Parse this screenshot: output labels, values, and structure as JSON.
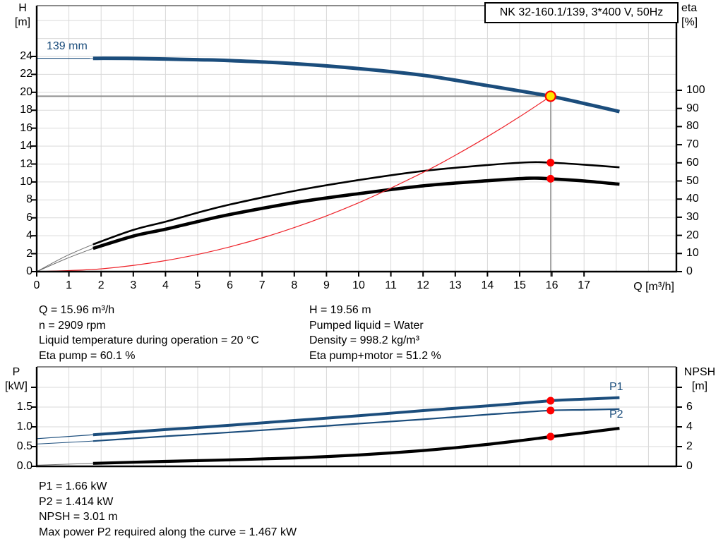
{
  "title_box": "NK 32-160.1/139, 3*400 V, 50Hz",
  "colors": {
    "curve_blue": "#1b4d7c",
    "curve_black": "#000000",
    "curve_red": "#ee2229",
    "marker_red": "#ff0000",
    "marker_yellow": "#ffe600",
    "grid": "#d9d9d9",
    "axis": "#000000",
    "guide": "#8f8f8f",
    "thin_grey": "#6e6e6e",
    "label_blue": "#1b4d7c"
  },
  "annotations": {
    "mid_left": [
      "Q = 15.96 m³/h",
      "n = 2909 rpm",
      "Liquid temperature during operation = 20 °C",
      "Eta pump = 60.1 %"
    ],
    "mid_right": [
      "H = 19.56 m",
      "Pumped liquid = Water",
      "Density = 998.2 kg/m³",
      "Eta pump+motor = 51.2 %"
    ],
    "bottom": [
      "P1 = 1.66 kW",
      "P2 = 1.414 kW",
      "NPSH = 3.01 m",
      "Max power P2 required along the curve = 1.467 kW"
    ]
  },
  "chart_data": [
    {
      "type": "line",
      "name": "qh-eta-chart",
      "x_axis": {
        "label": "Q [m³/h]",
        "min": 0,
        "max": 19.87,
        "ticks": [
          {
            "value": 0,
            "label": "0"
          },
          {
            "value": 1,
            "label": "1"
          },
          {
            "value": 2,
            "label": "2"
          },
          {
            "value": 3,
            "label": "3"
          },
          {
            "value": 4,
            "label": "4"
          },
          {
            "value": 5,
            "label": "5"
          },
          {
            "value": 6,
            "label": "6"
          },
          {
            "value": 7,
            "label": "7"
          },
          {
            "value": 8,
            "label": "8"
          },
          {
            "value": 9,
            "label": "9"
          },
          {
            "value": 10,
            "label": "10"
          },
          {
            "value": 11,
            "label": "11"
          },
          {
            "value": 12,
            "label": "12"
          },
          {
            "value": 13,
            "label": "13"
          },
          {
            "value": 14,
            "label": "14"
          },
          {
            "value": 15,
            "label": "15"
          },
          {
            "value": 16,
            "label": "16"
          },
          {
            "value": 17,
            "label": "17"
          }
        ]
      },
      "y_left": {
        "label_line1": "H",
        "label_line2": "[m]",
        "min": 0,
        "max": 29.7,
        "ticks": [
          {
            "value": 0,
            "label": "0"
          },
          {
            "value": 2,
            "label": "2"
          },
          {
            "value": 4,
            "label": "4"
          },
          {
            "value": 6,
            "label": "6"
          },
          {
            "value": 8,
            "label": "8"
          },
          {
            "value": 10,
            "label": "10"
          },
          {
            "value": 12,
            "label": "12"
          },
          {
            "value": 14,
            "label": "14"
          },
          {
            "value": 16,
            "label": "16"
          },
          {
            "value": 18,
            "label": "18"
          },
          {
            "value": 20,
            "label": "20"
          },
          {
            "value": 22,
            "label": "22"
          },
          {
            "value": 24,
            "label": "24"
          }
        ]
      },
      "y_right": {
        "label_line1": "eta",
        "label_line2": "[%]",
        "min": 0,
        "max": 146,
        "ticks": [
          {
            "value": 0,
            "label": "0"
          },
          {
            "value": 10,
            "label": "10"
          },
          {
            "value": 20,
            "label": "20"
          },
          {
            "value": 30,
            "label": "30"
          },
          {
            "value": 40,
            "label": "40"
          },
          {
            "value": 50,
            "label": "50"
          },
          {
            "value": 60,
            "label": "60"
          },
          {
            "value": 70,
            "label": "70"
          },
          {
            "value": 80,
            "label": "80"
          },
          {
            "value": 90,
            "label": "90"
          },
          {
            "value": 100,
            "label": "100"
          }
        ]
      },
      "series": [
        {
          "name": "pump-curve-139mm",
          "label": "139 mm",
          "axis": "left",
          "color_key": "curve_blue",
          "thin_color_key": "curve_blue",
          "width": 5,
          "thin_width": 1.2,
          "thin_points": [
            [
              0,
              23.8
            ],
            [
              1.75,
              23.79
            ]
          ],
          "points": [
            [
              1.75,
              23.79
            ],
            [
              3,
              23.77
            ],
            [
              5,
              23.64
            ],
            [
              6,
              23.54
            ],
            [
              8,
              23.2
            ],
            [
              10,
              22.65
            ],
            [
              12,
              21.9
            ],
            [
              14,
              20.75
            ],
            [
              15.96,
              19.56
            ],
            [
              17,
              18.75
            ],
            [
              18.1,
              17.85
            ]
          ]
        },
        {
          "name": "eta-pump-curve",
          "axis": "right",
          "color_key": "curve_black",
          "thin_color_key": "thin_grey",
          "width": 2.6,
          "thin_width": 1,
          "thin_points": [
            [
              0,
              0
            ],
            [
              0.9,
              8.5
            ],
            [
              1.75,
              15
            ]
          ],
          "points": [
            [
              1.75,
              15
            ],
            [
              3,
              23
            ],
            [
              4,
              27.5
            ],
            [
              5,
              32.5
            ],
            [
              6,
              37
            ],
            [
              8,
              44.5
            ],
            [
              10,
              50.5
            ],
            [
              12,
              55.5
            ],
            [
              14,
              58.8
            ],
            [
              15.3,
              60.3
            ],
            [
              15.96,
              60.1
            ],
            [
              17,
              59
            ],
            [
              18.1,
              57.5
            ]
          ]
        },
        {
          "name": "eta-pump-motor-curve",
          "axis": "right",
          "color_key": "curve_black",
          "thin_color_key": "thin_grey",
          "width": 4.6,
          "thin_width": 1,
          "thin_points": [
            [
              0,
              0
            ],
            [
              0.9,
              7
            ],
            [
              1.75,
              12.8
            ]
          ],
          "points": [
            [
              1.75,
              12.8
            ],
            [
              3,
              19.6
            ],
            [
              4,
              23.4
            ],
            [
              5,
              27.6
            ],
            [
              6,
              31.5
            ],
            [
              8,
              38
            ],
            [
              10,
              43
            ],
            [
              12,
              47.3
            ],
            [
              14,
              50.1
            ],
            [
              15.3,
              51.5
            ],
            [
              15.96,
              51.2
            ],
            [
              17,
              50
            ],
            [
              18.1,
              48.2
            ]
          ]
        },
        {
          "name": "system-curve",
          "axis": "left",
          "color_key": "curve_red",
          "width": 1.2,
          "thin_points": [],
          "points": [
            [
              0,
              0
            ],
            [
              2,
              0.31
            ],
            [
              4,
              1.23
            ],
            [
              6,
              2.76
            ],
            [
              8,
              4.91
            ],
            [
              10,
              7.68
            ],
            [
              12,
              11.06
            ],
            [
              13,
              12.98
            ],
            [
              14,
              15.05
            ],
            [
              15,
              17.28
            ],
            [
              15.96,
              19.56
            ]
          ]
        }
      ],
      "markers": [
        {
          "name": "operating-point-marker",
          "x": 15.96,
          "y": 19.56,
          "axis": "left",
          "style": "yellow"
        },
        {
          "name": "eta-pump-point-marker",
          "x": 15.96,
          "y": 60.1,
          "axis": "right",
          "style": "red"
        },
        {
          "name": "eta-pump-motor-point-marker",
          "x": 15.96,
          "y": 51.2,
          "axis": "right",
          "style": "red"
        }
      ],
      "guides": {
        "q": 15.96,
        "h": 19.56
      }
    },
    {
      "type": "line",
      "name": "power-npsh-chart",
      "x_axis": {
        "label": "",
        "min": 0,
        "max": 19.87,
        "ticks": []
      },
      "y_left": {
        "label_line1": "P",
        "label_line2": "[kW]",
        "min": 0,
        "max": 2.52,
        "ticks": [
          {
            "value": 0,
            "label": "0.0"
          },
          {
            "value": 0.5,
            "label": "0.5"
          },
          {
            "value": 1,
            "label": "1.0"
          },
          {
            "value": 1.5,
            "label": "1.5"
          },
          {
            "value": 2,
            "label": ""
          }
        ]
      },
      "y_right": {
        "label_line1": "NPSH",
        "label_line2": "[m]",
        "min": 0,
        "max": 10.1,
        "ticks": [
          {
            "value": 0,
            "label": "0"
          },
          {
            "value": 2,
            "label": "2"
          },
          {
            "value": 4,
            "label": "4"
          },
          {
            "value": 6,
            "label": "6"
          },
          {
            "value": 8,
            "label": ""
          }
        ]
      },
      "series": [
        {
          "name": "p1-curve",
          "label": "P1",
          "axis": "left",
          "color_key": "curve_blue",
          "thin_color_key": "curve_blue",
          "width": 4,
          "thin_width": 1.2,
          "thin_points": [
            [
              0,
              0.7
            ],
            [
              1.75,
              0.8
            ]
          ],
          "points": [
            [
              1.75,
              0.8
            ],
            [
              4,
              0.93
            ],
            [
              6,
              1.04
            ],
            [
              8,
              1.16
            ],
            [
              10,
              1.28
            ],
            [
              12,
              1.41
            ],
            [
              14,
              1.53
            ],
            [
              15.96,
              1.66
            ],
            [
              17,
              1.7
            ],
            [
              18.1,
              1.74
            ]
          ]
        },
        {
          "name": "p2-curve",
          "label": "P2",
          "axis": "left",
          "color_key": "curve_blue",
          "thin_color_key": "curve_blue",
          "width": 2.2,
          "thin_width": 1,
          "thin_points": [
            [
              0,
              0.565
            ],
            [
              1.75,
              0.64
            ]
          ],
          "points": [
            [
              1.75,
              0.64
            ],
            [
              4,
              0.76
            ],
            [
              6,
              0.86
            ],
            [
              8,
              0.97
            ],
            [
              10,
              1.08
            ],
            [
              12,
              1.19
            ],
            [
              14,
              1.31
            ],
            [
              15.96,
              1.414
            ],
            [
              17,
              1.43
            ],
            [
              18.1,
              1.45
            ]
          ]
        },
        {
          "name": "npsh-curve",
          "axis": "right",
          "color_key": "curve_black",
          "thin_color_key": "thin_grey",
          "width": 4.2,
          "thin_width": 1,
          "thin_points": [
            [
              0,
              0.12
            ],
            [
              1.75,
              0.3
            ]
          ],
          "points": [
            [
              1.75,
              0.3
            ],
            [
              4,
              0.5
            ],
            [
              6,
              0.66
            ],
            [
              8,
              0.85
            ],
            [
              10,
              1.15
            ],
            [
              12,
              1.6
            ],
            [
              13.5,
              2.05
            ],
            [
              15,
              2.6
            ],
            [
              15.96,
              3.0
            ],
            [
              17,
              3.4
            ],
            [
              18.1,
              3.85
            ]
          ]
        }
      ],
      "markers": [
        {
          "name": "p1-point-marker",
          "x": 15.96,
          "y": 1.66,
          "axis": "left",
          "style": "red"
        },
        {
          "name": "p2-point-marker",
          "x": 15.96,
          "y": 1.414,
          "axis": "left",
          "style": "red"
        },
        {
          "name": "npsh-point-marker",
          "x": 15.96,
          "y": 3.01,
          "axis": "right",
          "style": "red"
        }
      ]
    }
  ]
}
